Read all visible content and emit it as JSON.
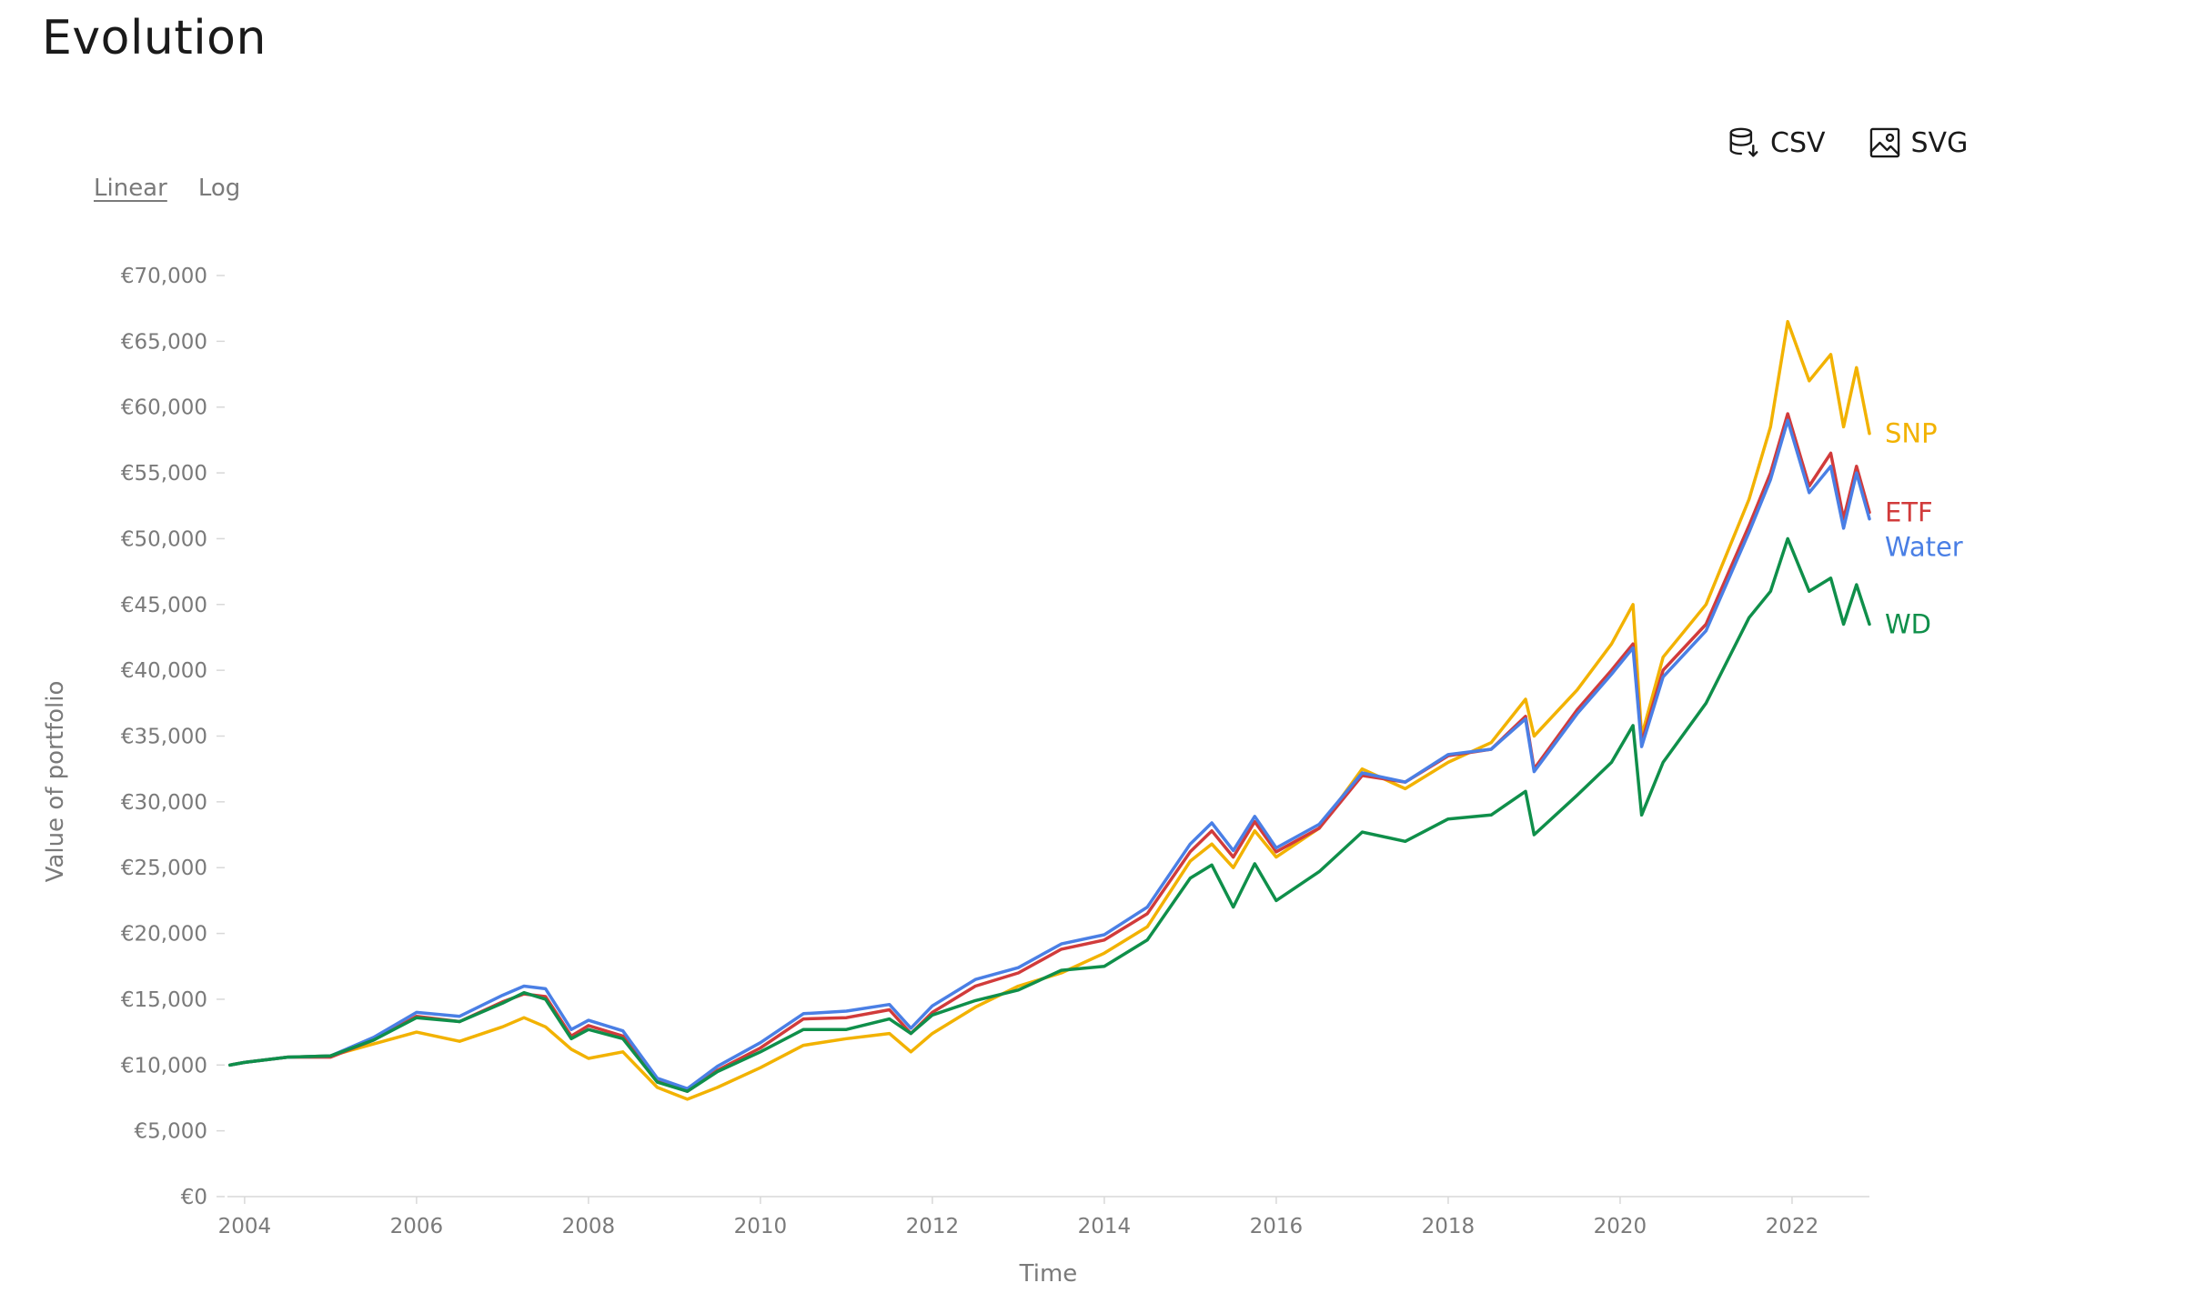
{
  "page": {
    "title": "Evolution"
  },
  "toolbar": {
    "csv_label": "CSV",
    "svg_label": "SVG",
    "csv_icon": "database-download-icon",
    "svg_icon": "image-icon"
  },
  "scale": {
    "options": [
      "Linear",
      "Log"
    ],
    "active": "Linear"
  },
  "chart_data": {
    "type": "line",
    "title": "",
    "xlabel": "Time",
    "ylabel": "Value of portfolio",
    "xlim": [
      2003.8,
      2022.9
    ],
    "ylim": [
      0,
      70000
    ],
    "x_ticks": [
      "2004",
      "2006",
      "2008",
      "2010",
      "2012",
      "2014",
      "2016",
      "2018",
      "2020",
      "2022"
    ],
    "y_ticks": [
      "€0",
      "€5,000",
      "€10,000",
      "€15,000",
      "€20,000",
      "€25,000",
      "€30,000",
      "€35,000",
      "€40,000",
      "€45,000",
      "€50,000",
      "€55,000",
      "€60,000",
      "€65,000",
      "€70,000"
    ],
    "grid": false,
    "legend": "inline labels at right end of lines",
    "x": [
      2003.83,
      2004.0,
      2004.5,
      2005.0,
      2005.5,
      2006.0,
      2006.5,
      2007.0,
      2007.25,
      2007.5,
      2007.8,
      2008.0,
      2008.4,
      2008.8,
      2009.15,
      2009.5,
      2010.0,
      2010.5,
      2011.0,
      2011.5,
      2011.75,
      2012.0,
      2012.5,
      2013.0,
      2013.5,
      2014.0,
      2014.5,
      2015.0,
      2015.25,
      2015.5,
      2015.75,
      2016.0,
      2016.5,
      2017.0,
      2017.5,
      2018.0,
      2018.5,
      2018.9,
      2019.0,
      2019.5,
      2019.9,
      2020.15,
      2020.25,
      2020.5,
      2021.0,
      2021.5,
      2021.75,
      2021.95,
      2022.2,
      2022.45,
      2022.6,
      2022.75,
      2022.9
    ],
    "series": [
      {
        "name": "SNP",
        "color": "#F2B200",
        "values": [
          10000,
          10200,
          10600,
          10700,
          11600,
          12500,
          11800,
          12900,
          13600,
          12900,
          11200,
          10500,
          11000,
          8300,
          7400,
          8300,
          9800,
          11500,
          12000,
          12400,
          11000,
          12400,
          14400,
          16000,
          17000,
          18500,
          20500,
          25500,
          26800,
          25000,
          27800,
          25800,
          28000,
          32500,
          31000,
          33000,
          34500,
          37800,
          35000,
          38500,
          42000,
          45000,
          35000,
          41000,
          45000,
          53000,
          58500,
          66500,
          62000,
          64000,
          58500,
          63000,
          58000
        ]
      },
      {
        "name": "ETF",
        "color": "#D13B3B",
        "values": [
          10000,
          10200,
          10600,
          10600,
          11900,
          13700,
          13300,
          14800,
          15400,
          15200,
          12200,
          13000,
          12200,
          8800,
          8000,
          9600,
          11300,
          13500,
          13600,
          14200,
          12400,
          14000,
          16000,
          17000,
          18800,
          19500,
          21500,
          26200,
          27800,
          25800,
          28500,
          26200,
          28000,
          32000,
          31500,
          33500,
          34000,
          36500,
          32500,
          37000,
          40000,
          42000,
          34500,
          40000,
          43500,
          51000,
          55000,
          59500,
          54000,
          56500,
          51500,
          55500,
          52000
        ]
      },
      {
        "name": "Water",
        "color": "#4A7FE5",
        "values": [
          10000,
          10200,
          10600,
          10700,
          12100,
          14000,
          13700,
          15300,
          16000,
          15800,
          12700,
          13400,
          12600,
          9000,
          8200,
          9900,
          11700,
          13900,
          14100,
          14600,
          12800,
          14500,
          16500,
          17400,
          19200,
          19900,
          22000,
          26800,
          28400,
          26300,
          28900,
          26500,
          28300,
          32200,
          31500,
          33600,
          34000,
          36300,
          32300,
          36700,
          39700,
          41700,
          34200,
          39500,
          43000,
          50500,
          54500,
          59000,
          53500,
          55500,
          50800,
          55000,
          51500
        ]
      },
      {
        "name": "WD",
        "color": "#0F8F4A",
        "values": [
          10000,
          10200,
          10600,
          10700,
          11900,
          13600,
          13300,
          14700,
          15500,
          15000,
          12000,
          12700,
          12000,
          8700,
          8000,
          9500,
          11000,
          12700,
          12700,
          13500,
          12400,
          13800,
          14900,
          15700,
          17200,
          17500,
          19500,
          24200,
          25200,
          22000,
          25300,
          22500,
          24700,
          27700,
          27000,
          28700,
          29000,
          30800,
          27500,
          30500,
          33000,
          35800,
          29000,
          33000,
          37500,
          44000,
          46000,
          50000,
          46000,
          47000,
          43500,
          46500,
          43500
        ]
      }
    ]
  }
}
